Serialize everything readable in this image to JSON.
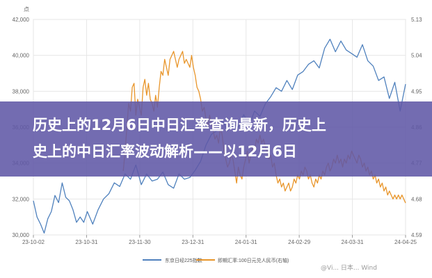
{
  "banner": {
    "line1": "历史上的12月6日中日汇率查询最新，历史上",
    "line2": "史上的中日汇率波动解析——以12月6日"
  },
  "watermark": "@Vi... 日本... Wind",
  "colors": {
    "series1": "#4f81bd",
    "series2": "#e8952a",
    "grid": "#e6e6e6",
    "banner": "#6058a6"
  },
  "chart_data": {
    "type": "line",
    "title": "",
    "left_unit": "点",
    "right_unit": "",
    "grid": true,
    "legend_position": "bottom",
    "x_ticks": [
      "23-10-02",
      "23-10-31",
      "23-11-30",
      "23-12-31",
      "24-01-31",
      "24-02-29",
      "24-03-31",
      "24-04-25"
    ],
    "y_left": {
      "min": 30000,
      "max": 42000,
      "ticks": [
        "30,000",
        "32,000",
        "34,000",
        "36,000",
        "38,000",
        "40,000",
        "42,000"
      ]
    },
    "y_right": {
      "min": 4.59,
      "max": 5.13,
      "ticks": [
        "4.59",
        "4.68",
        "4.77",
        "4.86",
        "4.95",
        "5.04",
        "5.13"
      ]
    },
    "series": [
      {
        "name": "东京日经225指数",
        "axis": "left",
        "x": [
          0,
          2,
          4,
          6,
          8,
          10,
          12,
          14,
          16,
          18,
          20,
          22,
          24,
          26,
          28,
          30,
          33,
          36,
          39,
          42,
          45,
          48,
          51,
          54,
          57,
          60,
          63,
          66,
          69,
          72,
          75,
          78,
          81,
          84,
          87,
          90,
          93,
          96,
          99,
          102,
          105,
          108,
          111,
          114,
          117,
          120,
          123,
          126,
          129,
          132,
          135,
          138,
          141,
          144,
          147,
          150,
          153,
          156,
          159,
          162,
          165,
          168,
          171,
          174,
          177,
          180,
          183,
          186,
          189,
          192,
          195,
          198,
          201,
          204,
          207
        ],
        "values": [
          31900,
          31000,
          30600,
          30100,
          30900,
          31300,
          32200,
          31800,
          32900,
          32100,
          31900,
          31400,
          30700,
          31000,
          30700,
          31300,
          30600,
          31400,
          32000,
          32300,
          32900,
          32700,
          33400,
          33100,
          33900,
          32800,
          33400,
          33000,
          33100,
          33500,
          32800,
          32600,
          33400,
          33100,
          33200,
          33600,
          34100,
          35000,
          35600,
          35800,
          36400,
          35800,
          36200,
          36000,
          36700,
          36100,
          36900,
          36600,
          37300,
          37700,
          38200,
          38000,
          38600,
          38100,
          38900,
          39100,
          39500,
          39700,
          39300,
          40400,
          40900,
          40200,
          40800,
          40300,
          40100,
          39900,
          40600,
          39700,
          39400,
          38600,
          38800,
          37600,
          38500,
          36900,
          38400
        ]
      },
      {
        "name": "即期汇率:100日元兑人民币(右轴)",
        "axis": "right",
        "x": [
          50,
          51,
          52,
          53,
          54,
          55,
          56,
          57,
          58,
          59,
          60,
          61,
          62,
          63,
          64,
          65,
          66,
          67,
          68,
          69,
          70,
          71,
          72,
          73,
          74,
          75,
          76,
          77,
          78,
          79,
          80,
          81,
          82,
          83,
          84,
          85,
          86,
          87,
          88,
          89,
          90,
          91,
          92,
          93,
          94,
          95,
          96,
          97,
          98,
          99,
          100,
          101,
          102,
          103,
          104,
          105,
          106,
          107,
          108,
          109,
          110,
          111,
          112,
          113,
          114,
          115,
          116,
          117,
          118,
          119,
          120,
          121,
          122,
          123,
          124,
          125,
          126,
          127,
          128,
          129,
          130,
          131,
          132,
          133,
          134,
          135,
          136,
          137,
          138,
          139,
          140,
          141,
          142,
          143,
          144,
          145,
          146,
          147,
          148,
          149,
          150,
          151,
          152,
          153,
          154,
          155,
          156,
          157,
          158,
          159,
          160,
          161,
          162,
          163,
          164,
          165,
          166,
          167,
          168,
          169,
          170,
          171,
          172,
          173,
          174,
          175,
          176,
          177,
          178,
          179,
          180,
          181,
          182,
          183,
          184,
          185,
          186,
          187,
          188,
          189,
          190,
          191,
          192,
          193,
          194,
          195,
          196,
          197,
          198,
          199,
          200,
          201,
          202,
          203,
          204,
          205,
          206,
          207
        ],
        "values": [
          4.75,
          4.8,
          4.86,
          4.92,
          4.9,
          4.96,
          4.97,
          4.89,
          4.93,
          4.91,
          4.89,
          4.96,
          4.98,
          4.94,
          4.97,
          4.93,
          4.92,
          4.9,
          4.94,
          4.91,
          4.96,
          5.0,
          4.99,
          5.03,
          5.01,
          4.99,
          5.03,
          5.04,
          5.05,
          5.03,
          5.01,
          5.03,
          5.04,
          5.05,
          5.02,
          5.03,
          5.02,
          5.01,
          5.04,
          5.01,
          4.99,
          4.96,
          4.95,
          4.93,
          4.9,
          4.91,
          4.88,
          4.86,
          4.89,
          4.87,
          4.85,
          4.83,
          4.84,
          4.82,
          4.86,
          4.84,
          4.8,
          4.78,
          4.76,
          4.77,
          4.79,
          4.78,
          4.75,
          4.72,
          4.76,
          4.74,
          4.73,
          4.76,
          4.78,
          4.8,
          4.77,
          4.79,
          4.81,
          4.8,
          4.83,
          4.82,
          4.84,
          4.82,
          4.83,
          4.81,
          4.8,
          4.78,
          4.79,
          4.76,
          4.77,
          4.74,
          4.72,
          4.73,
          4.71,
          4.72,
          4.7,
          4.71,
          4.72,
          4.7,
          4.71,
          4.73,
          4.72,
          4.74,
          4.73,
          4.75,
          4.74,
          4.76,
          4.75,
          4.73,
          4.74,
          4.72,
          4.71,
          4.73,
          4.72,
          4.74,
          4.73,
          4.75,
          4.74,
          4.76,
          4.77,
          4.75,
          4.76,
          4.78,
          4.77,
          4.79,
          4.77,
          4.78,
          4.76,
          4.78,
          4.77,
          4.79,
          4.78,
          4.8,
          4.79,
          4.78,
          4.77,
          4.79,
          4.78,
          4.76,
          4.77,
          4.75,
          4.76,
          4.74,
          4.75,
          4.73,
          4.74,
          4.72,
          4.73,
          4.71,
          4.72,
          4.7,
          4.71,
          4.69,
          4.7,
          4.69,
          4.68,
          4.69,
          4.68,
          4.69,
          4.68,
          4.69,
          4.68,
          4.67
        ]
      }
    ]
  }
}
